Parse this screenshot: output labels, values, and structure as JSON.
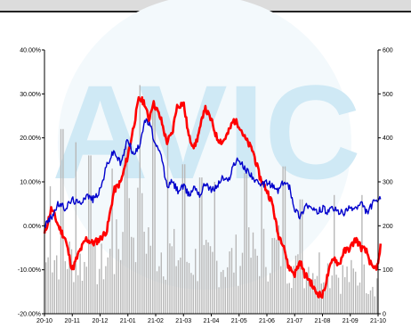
{
  "window": {
    "bar_color": "#dcdcdc"
  },
  "watermark": {
    "text": "AVIC",
    "color": "#cfe9f5"
  },
  "chart_data": {
    "type": "line",
    "x_categories": [
      "20-10",
      "20-11",
      "20-12",
      "21-01",
      "21-02",
      "21-03",
      "21-04",
      "21-05",
      "21-06",
      "21-07",
      "21-08",
      "21-09",
      "21-10"
    ],
    "left_axis": {
      "ticks": [
        "40.00%",
        "30.00%",
        "20.00%",
        "10.00%",
        "0.00%",
        "-10.00%",
        "-20.00%"
      ],
      "ylim": [
        -20,
        40
      ],
      "unit": "%"
    },
    "right_axis": {
      "ticks": [
        "600",
        "500",
        "400",
        "300",
        "200",
        "100",
        "0"
      ],
      "ylim": [
        0,
        600
      ]
    },
    "series": [
      {
        "axis": "left",
        "color": "#ff0000",
        "style": "line",
        "points": [
          [
            0,
            -2
          ],
          [
            0.25,
            4
          ],
          [
            0.5,
            0
          ],
          [
            0.75,
            -3
          ],
          [
            1,
            -10
          ],
          [
            1.25,
            -6
          ],
          [
            1.5,
            -3
          ],
          [
            1.75,
            -4
          ],
          [
            2,
            -3
          ],
          [
            2.25,
            -1
          ],
          [
            2.5,
            8
          ],
          [
            2.75,
            10
          ],
          [
            3,
            16
          ],
          [
            3.25,
            24
          ],
          [
            3.4,
            29
          ],
          [
            3.6,
            28
          ],
          [
            3.75,
            24
          ],
          [
            3.9,
            28
          ],
          [
            4,
            27
          ],
          [
            4.2,
            24
          ],
          [
            4.4,
            19
          ],
          [
            4.6,
            21
          ],
          [
            4.75,
            27
          ],
          [
            5,
            28
          ],
          [
            5.2,
            20
          ],
          [
            5.4,
            18
          ],
          [
            5.6,
            22
          ],
          [
            5.75,
            27
          ],
          [
            6,
            24
          ],
          [
            6.2,
            20
          ],
          [
            6.4,
            19
          ],
          [
            6.6,
            21
          ],
          [
            6.8,
            24
          ],
          [
            7,
            23
          ],
          [
            7.2,
            20
          ],
          [
            7.5,
            17
          ],
          [
            7.75,
            11
          ],
          [
            8,
            8
          ],
          [
            8.2,
            5
          ],
          [
            8.4,
            -2
          ],
          [
            8.6,
            -4
          ],
          [
            8.75,
            -9
          ],
          [
            9,
            -11
          ],
          [
            9.2,
            -8
          ],
          [
            9.35,
            -11
          ],
          [
            9.5,
            -12
          ],
          [
            9.75,
            -15
          ],
          [
            10,
            -16
          ],
          [
            10.2,
            -11
          ],
          [
            10.4,
            -7
          ],
          [
            10.6,
            -9
          ],
          [
            10.75,
            -6
          ],
          [
            11,
            -5
          ],
          [
            11.2,
            -3
          ],
          [
            11.4,
            -5
          ],
          [
            11.6,
            -6
          ],
          [
            11.8,
            -10
          ],
          [
            12,
            -9
          ],
          [
            12.1,
            -4
          ]
        ]
      },
      {
        "axis": "left",
        "color": "#0000cc",
        "style": "line",
        "points": [
          [
            0,
            0
          ],
          [
            0.25,
            2
          ],
          [
            0.5,
            5
          ],
          [
            0.75,
            4
          ],
          [
            1,
            6
          ],
          [
            1.25,
            5
          ],
          [
            1.5,
            7
          ],
          [
            1.75,
            6
          ],
          [
            2,
            8
          ],
          [
            2.25,
            14
          ],
          [
            2.5,
            17
          ],
          [
            2.75,
            14
          ],
          [
            3,
            20
          ],
          [
            3.2,
            16
          ],
          [
            3.4,
            18
          ],
          [
            3.6,
            24
          ],
          [
            3.8,
            23
          ],
          [
            4,
            18
          ],
          [
            4.2,
            16
          ],
          [
            4.4,
            9
          ],
          [
            4.6,
            10
          ],
          [
            4.8,
            8
          ],
          [
            5,
            9
          ],
          [
            5.2,
            7
          ],
          [
            5.4,
            9
          ],
          [
            5.6,
            7
          ],
          [
            5.8,
            10
          ],
          [
            6,
            8
          ],
          [
            6.2,
            9
          ],
          [
            6.4,
            11
          ],
          [
            6.6,
            10
          ],
          [
            6.8,
            14
          ],
          [
            7,
            15
          ],
          [
            7.2,
            13
          ],
          [
            7.4,
            12
          ],
          [
            7.6,
            10
          ],
          [
            7.8,
            9
          ],
          [
            8,
            10
          ],
          [
            8.2,
            9
          ],
          [
            8.4,
            8
          ],
          [
            8.6,
            10
          ],
          [
            8.8,
            9
          ],
          [
            9,
            4
          ],
          [
            9.2,
            2
          ],
          [
            9.4,
            5
          ],
          [
            9.6,
            4
          ],
          [
            9.8,
            3
          ],
          [
            10,
            4
          ],
          [
            10.2,
            3
          ],
          [
            10.4,
            4
          ],
          [
            10.6,
            3
          ],
          [
            10.8,
            3
          ],
          [
            11,
            4
          ],
          [
            11.2,
            4
          ],
          [
            11.4,
            5
          ],
          [
            11.6,
            3
          ],
          [
            11.8,
            5
          ],
          [
            12,
            6
          ],
          [
            12.1,
            6
          ]
        ]
      },
      {
        "axis": "right",
        "color": "#b8b8b8",
        "style": "volume-bars",
        "shape": [
          [
            0,
            130
          ],
          [
            0.5,
            150
          ],
          [
            1,
            140
          ],
          [
            1.5,
            120
          ],
          [
            2,
            120
          ],
          [
            2.5,
            150
          ],
          [
            3,
            230
          ],
          [
            3.5,
            220
          ],
          [
            4,
            170
          ],
          [
            4.5,
            150
          ],
          [
            5,
            140
          ],
          [
            5.5,
            130
          ],
          [
            6,
            125
          ],
          [
            6.5,
            130
          ],
          [
            7,
            140
          ],
          [
            7.5,
            150
          ],
          [
            8,
            155
          ],
          [
            8.5,
            165
          ],
          [
            9,
            110
          ],
          [
            9.5,
            120
          ],
          [
            10,
            120
          ],
          [
            10.5,
            100
          ],
          [
            11,
            95
          ],
          [
            11.5,
            90
          ],
          [
            12,
            80
          ]
        ],
        "peaks": [
          [
            0.2,
            290
          ],
          [
            0.6,
            420
          ],
          [
            1.1,
            390
          ],
          [
            1.6,
            360
          ],
          [
            2.4,
            330
          ],
          [
            2.9,
            380
          ],
          [
            3.4,
            520
          ],
          [
            3.9,
            480
          ],
          [
            4.4,
            395
          ],
          [
            5.0,
            340
          ],
          [
            5.6,
            310
          ],
          [
            6.1,
            300
          ],
          [
            7.2,
            320
          ],
          [
            7.8,
            300
          ],
          [
            8.6,
            335
          ],
          [
            9.2,
            260
          ],
          [
            10.4,
            270
          ],
          [
            11.4,
            270
          ]
        ]
      }
    ]
  }
}
